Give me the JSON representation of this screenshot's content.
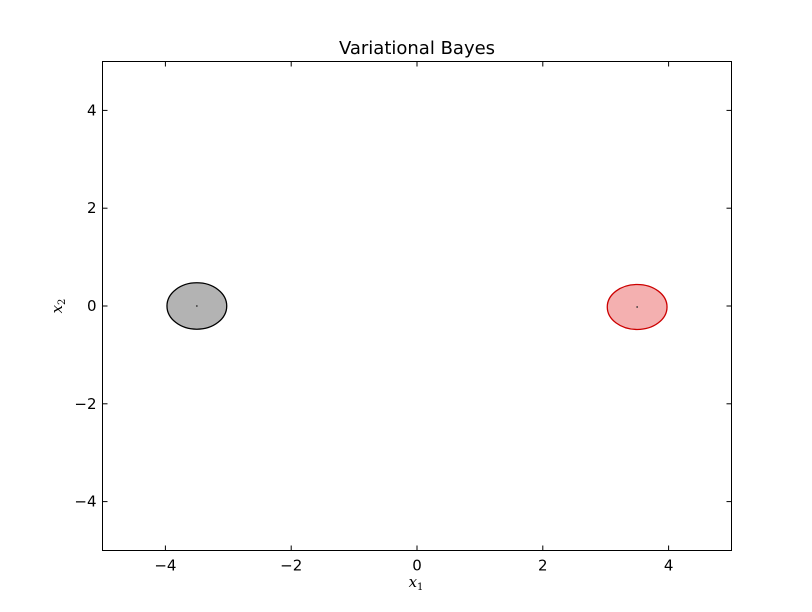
{
  "chart_data": {
    "type": "scatter",
    "title": "Variational Bayes",
    "xlabel": "x",
    "xlabel_sub": "1",
    "ylabel": "x",
    "ylabel_sub": "2",
    "xlim": [
      -5,
      5
    ],
    "ylim": [
      -5,
      5
    ],
    "xticks": [
      -4,
      -2,
      0,
      2,
      4
    ],
    "yticks": [
      -4,
      -2,
      0,
      2,
      4
    ],
    "grid": false,
    "components": [
      {
        "center": [
          -3.5,
          0.0
        ],
        "width": 0.95,
        "height": 0.95,
        "fill": "#b3b3b3",
        "edge": "#000000"
      },
      {
        "center": [
          3.5,
          -0.02
        ],
        "width": 0.95,
        "height": 0.92,
        "fill": "#f4b0b0",
        "edge": "#cc0000"
      }
    ]
  }
}
